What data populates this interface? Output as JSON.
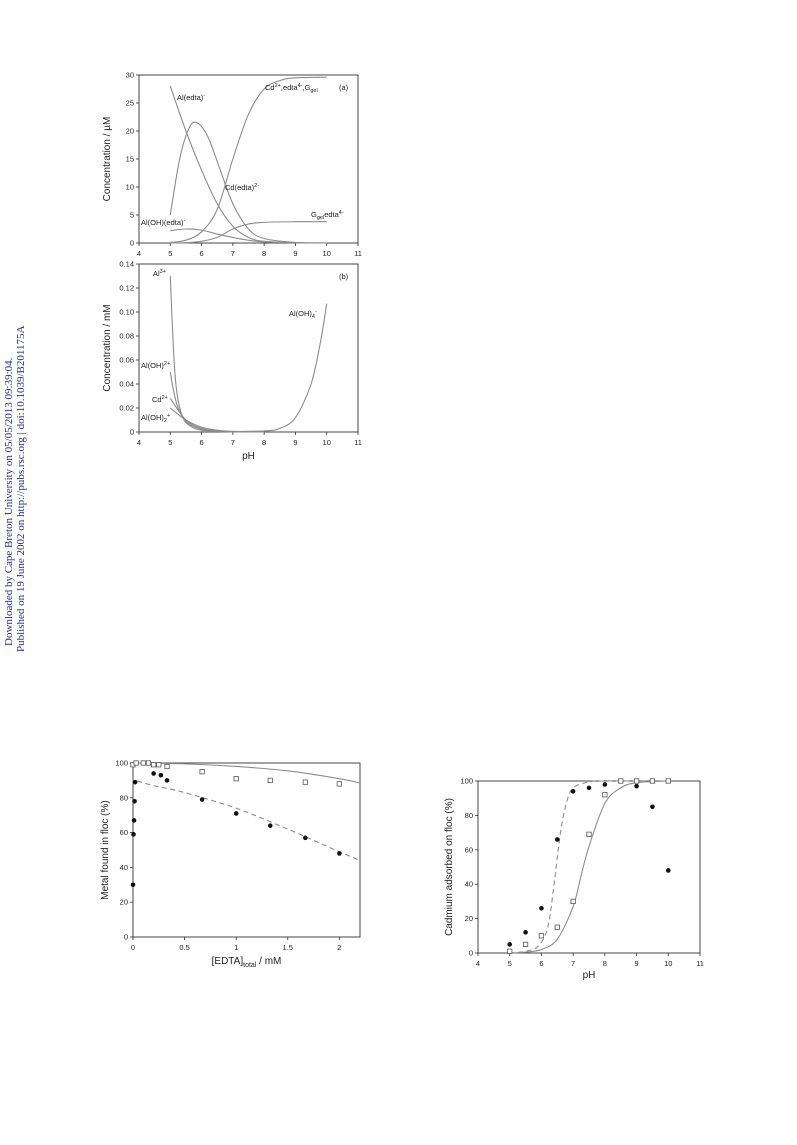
{
  "side_note": {
    "downloaded": "Downloaded by Cape Breton University on 05/05/2013 09:39:04.",
    "published": "Published on 19 June 2002 on http://pubs.rsc.org | doi:10.1039/B201175A"
  },
  "chart_data": [
    {
      "type": "line",
      "panel": "(a)",
      "xlabel": "",
      "ylabel": "Concentration / µM",
      "xlim": [
        4,
        11
      ],
      "ylim": [
        0,
        30
      ],
      "xticks": [
        4,
        5,
        6,
        7,
        8,
        9,
        10,
        11
      ],
      "yticks": [
        0,
        5,
        10,
        15,
        20,
        25,
        30
      ],
      "series": [
        {
          "label_text": "Cd²⁺,edta⁴⁻,G_gel",
          "points": [
            [
              5,
              0.1
            ],
            [
              5.5,
              0.5
            ],
            [
              6,
              2
            ],
            [
              6.5,
              6
            ],
            [
              7,
              15
            ],
            [
              7.5,
              23
            ],
            [
              8,
              27.5
            ],
            [
              8.5,
              29
            ],
            [
              9,
              29.5
            ],
            [
              10,
              29.6
            ]
          ]
        },
        {
          "label_text": "Al(edta)⁻",
          "points": [
            [
              5,
              28
            ],
            [
              5.5,
              20
            ],
            [
              6,
              13
            ],
            [
              6.5,
              7
            ],
            [
              7,
              3
            ],
            [
              7.5,
              1
            ],
            [
              8,
              0.3
            ],
            [
              9,
              0.05
            ],
            [
              10,
              0
            ]
          ]
        },
        {
          "label_text": "Cd(edta)²⁻",
          "points": [
            [
              5,
              5
            ],
            [
              5.3,
              15
            ],
            [
              5.6,
              20.5
            ],
            [
              5.85,
              21.5
            ],
            [
              6.2,
              19
            ],
            [
              6.6,
              13
            ],
            [
              7,
              7
            ],
            [
              7.5,
              2.5
            ],
            [
              8,
              0.8
            ],
            [
              9,
              0.1
            ],
            [
              10,
              0
            ]
          ]
        },
        {
          "label_text": "Al(OH)(edta)⁻",
          "points": [
            [
              5,
              2.2
            ],
            [
              5.5,
              2.5
            ],
            [
              6,
              2.3
            ],
            [
              6.5,
              1.6
            ],
            [
              7,
              1
            ],
            [
              7.5,
              0.5
            ],
            [
              8,
              0.2
            ],
            [
              9,
              0.05
            ],
            [
              10,
              0
            ]
          ]
        },
        {
          "label_text": "G_gel edta⁴⁻",
          "points": [
            [
              5,
              0
            ],
            [
              5.5,
              0.05
            ],
            [
              6,
              0.3
            ],
            [
              6.5,
              1
            ],
            [
              7,
              2.5
            ],
            [
              7.5,
              3.4
            ],
            [
              8,
              3.7
            ],
            [
              9,
              3.8
            ],
            [
              10,
              3.8
            ]
          ]
        }
      ],
      "annotations": [
        {
          "text": "(a)"
        },
        {
          "text": "Al(edta)⁻",
          "main": "Al(edta)",
          "sup": "-"
        },
        {
          "text": "Cd²⁺,edta⁴⁻,Ggel",
          "parts": [
            "Cd",
            "2+",
            ",edta",
            "4-",
            ",G",
            "gel"
          ]
        },
        {
          "text": "Cd(edta)²⁻",
          "main": "Cd(edta)",
          "sup": "2-"
        },
        {
          "text": "Al(OH)(edta)⁻",
          "main": "Al(OH)(edta)",
          "sup": "-"
        },
        {
          "text": "Ggel edta⁴⁻",
          "parts": [
            "G",
            "gel",
            "edta",
            "4-"
          ]
        }
      ]
    },
    {
      "type": "line",
      "panel": "(b)",
      "xlabel": "pH",
      "ylabel": "Concentration / mM",
      "xlim": [
        4,
        11
      ],
      "ylim": [
        0,
        0.14
      ],
      "xticks": [
        4,
        5,
        6,
        7,
        8,
        9,
        10,
        11
      ],
      "yticks": [
        0,
        0.02,
        0.04,
        0.06,
        0.08,
        0.1,
        0.12,
        0.14
      ],
      "ytick_labels": [
        "0",
        "0.02",
        "0.04",
        "0.06",
        "0.08",
        "0.10",
        "0.12",
        "0.14"
      ],
      "series": [
        {
          "label_text": "Al³⁺",
          "points": [
            [
              5,
              0.13
            ],
            [
              5.1,
              0.07
            ],
            [
              5.2,
              0.035
            ],
            [
              5.4,
              0.012
            ],
            [
              5.7,
              0.004
            ],
            [
              6,
              0.0015
            ],
            [
              6.5,
              0.0005
            ],
            [
              7,
              0.0002
            ],
            [
              8,
              0
            ]
          ]
        },
        {
          "label_text": "Al(OH)²⁺",
          "points": [
            [
              5,
              0.05
            ],
            [
              5.1,
              0.035
            ],
            [
              5.25,
              0.02
            ],
            [
              5.5,
              0.009
            ],
            [
              5.8,
              0.004
            ],
            [
              6.2,
              0.0015
            ],
            [
              7,
              0.0003
            ],
            [
              8,
              0
            ]
          ]
        },
        {
          "label_text": "Cd²⁺",
          "points": [
            [
              5,
              0.028
            ],
            [
              5.5,
              0.01
            ],
            [
              6,
              0.003
            ],
            [
              6.5,
              0.001
            ],
            [
              7,
              0.0003
            ],
            [
              8,
              0
            ]
          ]
        },
        {
          "label_text": "Al(OH)₂⁺",
          "points": [
            [
              5,
              0.02
            ],
            [
              5.5,
              0.01
            ],
            [
              6,
              0.004
            ],
            [
              6.5,
              0.0015
            ],
            [
              7,
              0.0005
            ],
            [
              8,
              0.0001
            ]
          ]
        },
        {
          "label_text": "Al(OH)₄⁻",
          "points": [
            [
              6,
              0.0005
            ],
            [
              7,
              0.0005
            ],
            [
              8,
              0.0009
            ],
            [
              8.5,
              0.003
            ],
            [
              9,
              0.012
            ],
            [
              9.5,
              0.04
            ],
            [
              9.8,
              0.075
            ],
            [
              10,
              0.107
            ]
          ]
        }
      ],
      "annotations": [
        {
          "text": "(b)"
        },
        {
          "text": "Al³⁺",
          "main": "Al",
          "sup": "3+"
        },
        {
          "text": "Al(OH)₄⁻",
          "main": "Al(OH)",
          "sub": "4",
          "sup": "-"
        },
        {
          "text": "Al(OH)²⁺",
          "main": "Al(OH)",
          "sup": "2+"
        },
        {
          "text": "Cd²⁺",
          "main": "Cd",
          "sup": "2+"
        },
        {
          "text": "Al(OH)₂⁺",
          "main": "Al(OH)",
          "sub": "2",
          "sup": "+"
        }
      ]
    },
    {
      "type": "scatter",
      "xlabel_main": "[EDTA]",
      "xlabel_sub": "total",
      "xlabel_tail": " / mM",
      "ylabel": "Metal found in floc (%)",
      "xlim": [
        0,
        2.2
      ],
      "ylim": [
        0,
        100
      ],
      "xticks": [
        0,
        0.5,
        1,
        1.5,
        2
      ],
      "xtick_labels": [
        "0",
        "0.5",
        "1",
        "1.5",
        "2"
      ],
      "yticks": [
        0,
        20,
        40,
        60,
        80,
        100
      ],
      "series": [
        {
          "marker": "filled",
          "points": [
            [
              0,
              30
            ],
            [
              0.005,
              59
            ],
            [
              0.01,
              67
            ],
            [
              0.015,
              78
            ],
            [
              0.02,
              89
            ],
            [
              0.2,
              94
            ],
            [
              0.27,
              93
            ],
            [
              0.33,
              90
            ],
            [
              0.67,
              79
            ],
            [
              1,
              71
            ],
            [
              1.33,
              64
            ],
            [
              1.67,
              57
            ],
            [
              2,
              48
            ]
          ]
        },
        {
          "marker": "open",
          "points": [
            [
              0,
              99
            ],
            [
              0.03,
              100
            ],
            [
              0.1,
              100
            ],
            [
              0.15,
              100
            ],
            [
              0.2,
              99
            ],
            [
              0.25,
              99
            ],
            [
              0.33,
              98
            ],
            [
              0.67,
              95
            ],
            [
              1,
              91
            ],
            [
              1.33,
              90
            ],
            [
              1.67,
              89
            ],
            [
              2,
              88
            ]
          ]
        }
      ],
      "fits": [
        {
          "style": "solid",
          "points": [
            [
              0,
              100
            ],
            [
              0.5,
              99.5
            ],
            [
              1,
              98
            ],
            [
              1.5,
              95.5
            ],
            [
              2,
              91
            ],
            [
              2.2,
              88.5
            ]
          ]
        },
        {
          "style": "dashed",
          "points": [
            [
              0,
              88
            ],
            [
              0.001,
              90
            ],
            [
              0.02,
              90
            ],
            [
              0.2,
              87
            ],
            [
              0.5,
              83
            ],
            [
              1,
              74
            ],
            [
              1.5,
              62
            ],
            [
              2,
              49
            ],
            [
              2.2,
              44
            ]
          ]
        }
      ]
    },
    {
      "type": "scatter",
      "xlabel": "pH",
      "ylabel": "Cadmium adsorbed on floc (%)",
      "xlim": [
        4,
        11
      ],
      "ylim": [
        0,
        100
      ],
      "xticks": [
        4,
        5,
        6,
        7,
        8,
        9,
        10,
        11
      ],
      "yticks": [
        0,
        20,
        40,
        60,
        80,
        100
      ],
      "series": [
        {
          "marker": "filled",
          "points": [
            [
              5,
              5
            ],
            [
              5.5,
              12
            ],
            [
              6,
              26
            ],
            [
              6.5,
              66
            ],
            [
              7,
              94
            ],
            [
              7.5,
              96
            ],
            [
              8,
              98
            ],
            [
              9,
              97
            ],
            [
              9.5,
              85
            ],
            [
              10,
              48
            ]
          ]
        },
        {
          "marker": "open",
          "points": [
            [
              5,
              1
            ],
            [
              5.5,
              5
            ],
            [
              6,
              10
            ],
            [
              6.5,
              15
            ],
            [
              7,
              30
            ],
            [
              7.5,
              69
            ],
            [
              8,
              92
            ],
            [
              8.5,
              100
            ],
            [
              9,
              100
            ],
            [
              9.5,
              100
            ],
            [
              10,
              100
            ]
          ]
        }
      ],
      "fits": [
        {
          "style": "solid",
          "points": [
            [
              5,
              0
            ],
            [
              5.5,
              0.5
            ],
            [
              6,
              2
            ],
            [
              6.5,
              8
            ],
            [
              7,
              27
            ],
            [
              7.25,
              45
            ],
            [
              7.5,
              62
            ],
            [
              8,
              87
            ],
            [
              8.5,
              96
            ],
            [
              9,
              99
            ],
            [
              10,
              100
            ]
          ]
        },
        {
          "style": "dashed",
          "points": [
            [
              5,
              0
            ],
            [
              5.5,
              1
            ],
            [
              5.9,
              4
            ],
            [
              6.2,
              15
            ],
            [
              6.4,
              40
            ],
            [
              6.6,
              70
            ],
            [
              6.8,
              88
            ],
            [
              7,
              96
            ],
            [
              7.5,
              99.5
            ],
            [
              8,
              100
            ],
            [
              10,
              100
            ]
          ]
        }
      ]
    }
  ]
}
